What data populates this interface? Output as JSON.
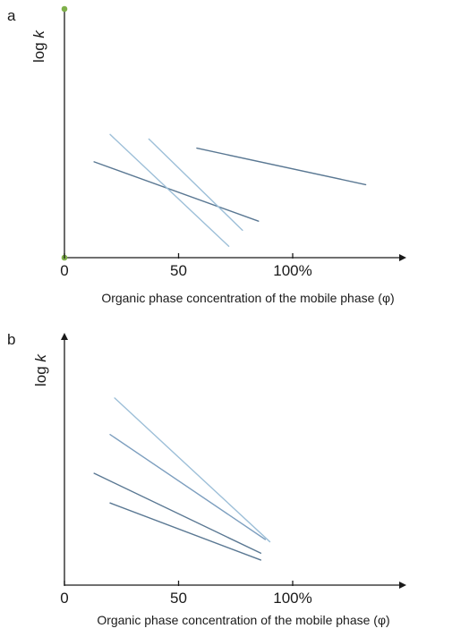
{
  "chart_data": [
    {
      "panel": "a",
      "type": "line",
      "xlabel": "Organic phase concentration of the mobile phase (φ)",
      "ylabel_prefix": "log ",
      "ylabel_var": "k",
      "xlim": [
        0,
        150
      ],
      "ylim": [
        0,
        100
      ],
      "x_ticks": [
        {
          "value": 0,
          "label": "0"
        },
        {
          "value": 50,
          "label": "50"
        },
        {
          "value": 100,
          "label": "100%"
        }
      ],
      "series": [
        {
          "color": "#5a7893",
          "x": [
            13,
            85
          ],
          "y": [
            42,
            16
          ]
        },
        {
          "color": "#9dbfd8",
          "x": [
            20,
            72
          ],
          "y": [
            54,
            5
          ]
        },
        {
          "color": "#9dbfd8",
          "x": [
            37,
            78
          ],
          "y": [
            52,
            12
          ]
        },
        {
          "color": "#5a7893",
          "x": [
            58,
            132
          ],
          "y": [
            48,
            32
          ]
        }
      ],
      "axis_end_markers": {
        "color": "#7fb04a"
      }
    },
    {
      "panel": "b",
      "type": "line",
      "xlabel": "Organic phase concentration of the mobile phase (φ)",
      "ylabel_prefix": "log ",
      "ylabel_var": "k",
      "xlim": [
        0,
        150
      ],
      "ylim": [
        0,
        100
      ],
      "x_ticks": [
        {
          "value": 0,
          "label": "0"
        },
        {
          "value": 50,
          "label": "50"
        },
        {
          "value": 100,
          "label": "100%"
        }
      ],
      "series": [
        {
          "color": "#9dbfd8",
          "x": [
            22,
            90
          ],
          "y": [
            82,
            19
          ]
        },
        {
          "color": "#7d9fbf",
          "x": [
            20,
            88
          ],
          "y": [
            66,
            20
          ]
        },
        {
          "color": "#5a7893",
          "x": [
            13,
            86
          ],
          "y": [
            49,
            14
          ]
        },
        {
          "color": "#5a7893",
          "x": [
            20,
            86
          ],
          "y": [
            36,
            11
          ]
        }
      ]
    }
  ]
}
